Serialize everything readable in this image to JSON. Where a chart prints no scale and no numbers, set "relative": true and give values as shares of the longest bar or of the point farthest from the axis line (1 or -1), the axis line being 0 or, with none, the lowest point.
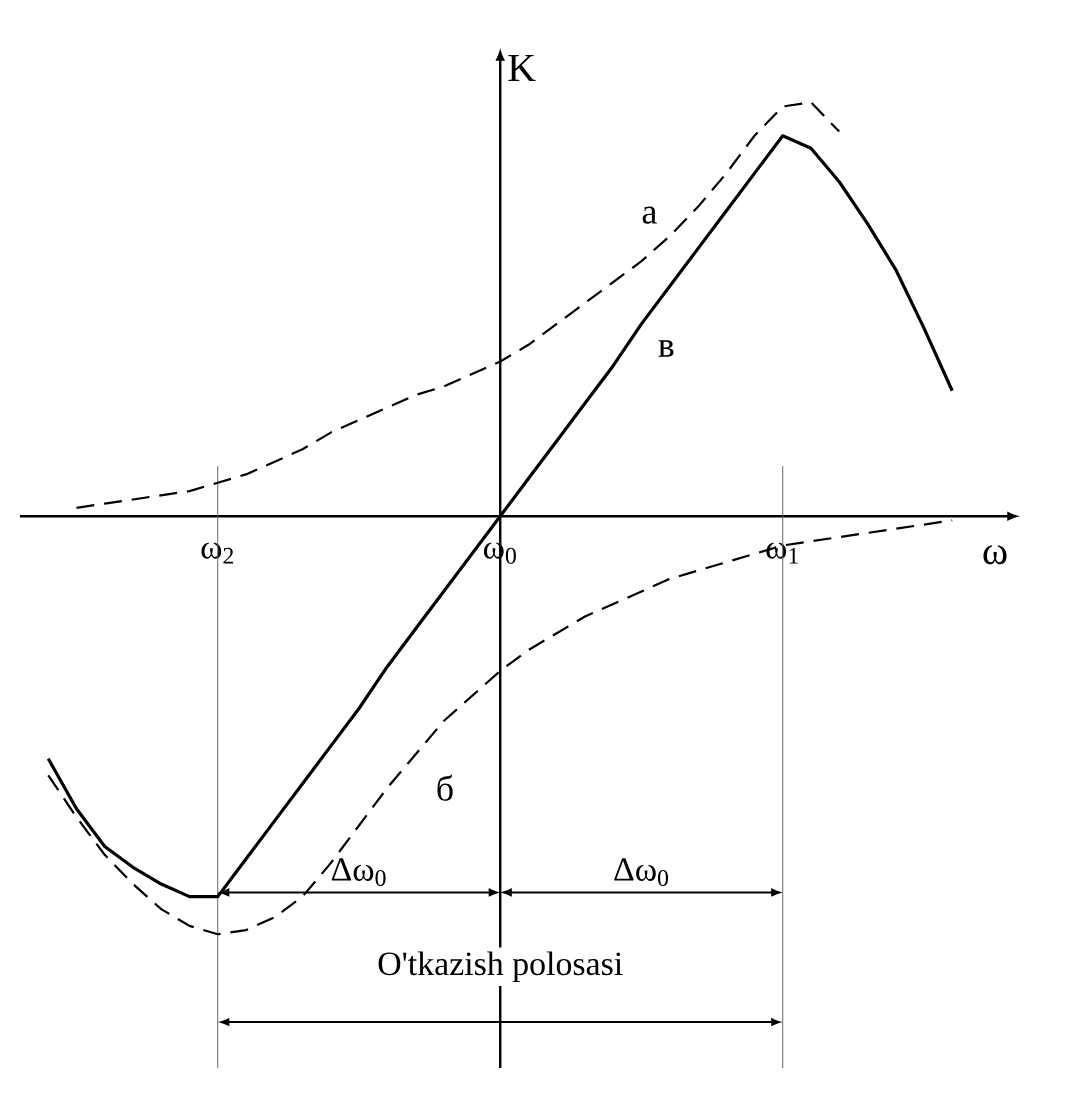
{
  "chart_data": {
    "type": "line",
    "relative": true,
    "xlabel": "ω",
    "ylabel": "K",
    "categories": [
      null,
      null,
      null,
      null,
      null,
      null,
      "ω$_{2}$",
      null,
      null,
      null,
      null,
      null,
      null,
      null,
      null,
      null,
      "ω$_{0}$",
      null,
      null,
      null,
      null,
      null,
      null,
      null,
      null,
      null,
      "ω$_{1}$",
      null,
      null,
      null,
      null,
      null,
      null
    ],
    "series": [
      {
        "name": "a",
        "color": "#000000",
        "line_style": "dashed",
        "values": [
          null,
          0.02,
          0.03,
          0.04,
          0.05,
          0.06,
          0.08,
          0.1,
          0.13,
          0.16,
          0.2,
          0.23,
          0.26,
          0.29,
          0.31,
          0.34,
          0.37,
          0.41,
          0.46,
          0.51,
          0.56,
          0.61,
          0.67,
          0.74,
          0.82,
          0.91,
          0.98,
          0.99,
          0.92,
          null,
          null,
          null,
          null
        ]
      },
      {
        "name": "б",
        "color": "#000000",
        "line_style": "dashed",
        "values": [
          -0.62,
          -0.72,
          -0.81,
          -0.88,
          -0.94,
          -0.98,
          -1.0,
          -0.99,
          -0.96,
          -0.91,
          -0.83,
          -0.74,
          -0.65,
          -0.57,
          -0.49,
          -0.43,
          -0.37,
          -0.32,
          -0.28,
          -0.24,
          -0.21,
          -0.18,
          -0.15,
          -0.13,
          -0.11,
          -0.09,
          -0.07,
          -0.06,
          -0.05,
          -0.04,
          -0.03,
          -0.02,
          -0.01
        ]
      },
      {
        "name": "в",
        "color": "#000000",
        "line_style": "solid",
        "values": [
          -0.58,
          -0.7,
          -0.79,
          -0.84,
          -0.88,
          -0.91,
          -0.91,
          -0.82,
          -0.73,
          -0.64,
          -0.55,
          -0.46,
          -0.36,
          -0.27,
          -0.18,
          -0.09,
          0,
          0.09,
          0.18,
          0.27,
          0.36,
          0.46,
          0.55,
          0.64,
          0.73,
          0.82,
          0.91,
          0.88,
          0.8,
          0.7,
          0.59,
          0.45,
          0.3
        ]
      }
    ],
    "annotations": [
      "Δω$_{0}$",
      "Δω$_{0}$",
      "O'tkazish polosasi"
    ]
  }
}
